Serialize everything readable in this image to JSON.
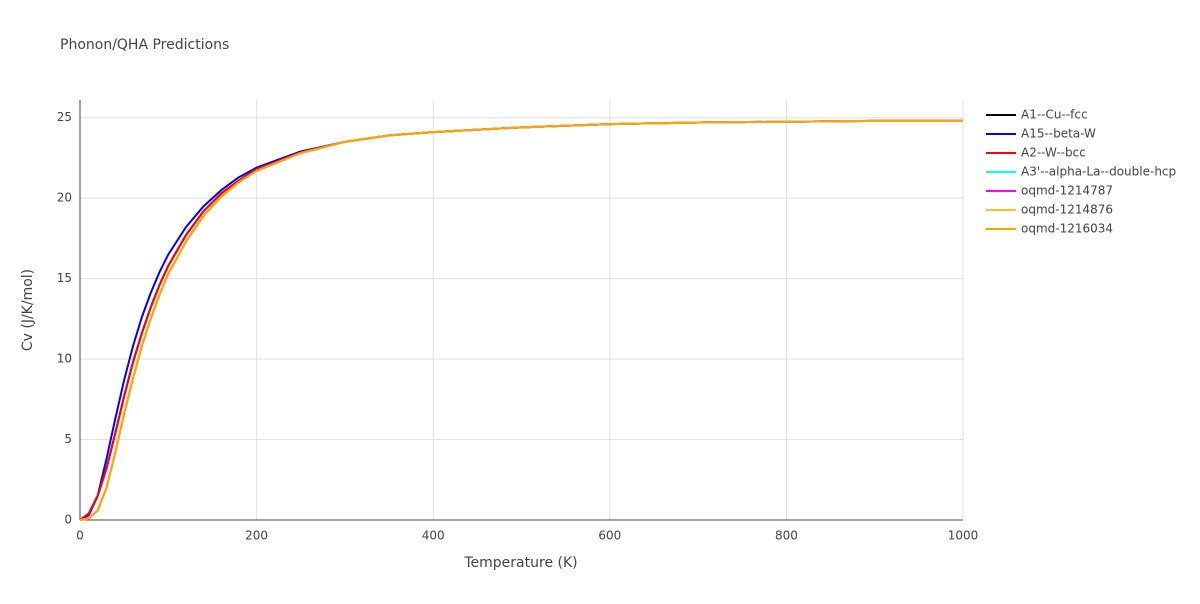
{
  "chart_data": {
    "type": "line",
    "title": "Phonon/QHA Predictions",
    "x_label": "Temperature (K)",
    "y_label": "Cv (J/K/mol)",
    "x": [
      0,
      10,
      20,
      30,
      40,
      50,
      60,
      70,
      80,
      90,
      100,
      120,
      140,
      160,
      180,
      200,
      250,
      300,
      350,
      400,
      500,
      600,
      700,
      800,
      900,
      1000
    ],
    "series": [
      {
        "name": "A1--Cu--fcc",
        "color": "#000000",
        "values": [
          0,
          0.4,
          1.5,
          3.2,
          5.4,
          7.7,
          9.8,
          11.6,
          13.2,
          14.6,
          15.8,
          17.7,
          19.2,
          20.3,
          21.1,
          21.8,
          22.85,
          23.5,
          23.9,
          24.1,
          24.4,
          24.6,
          24.7,
          24.75,
          24.8,
          24.8
        ]
      },
      {
        "name": "A15--beta-W",
        "color": "#0000ff",
        "values": [
          0,
          0.3,
          1.5,
          3.8,
          6.3,
          8.7,
          10.8,
          12.6,
          14.1,
          15.4,
          16.5,
          18.2,
          19.5,
          20.5,
          21.3,
          21.9,
          22.9,
          23.5,
          23.9,
          24.1,
          24.4,
          24.6,
          24.7,
          24.75,
          24.8,
          24.8
        ]
      },
      {
        "name": "A2--W--bcc",
        "color": "#ff0000",
        "values": [
          0,
          0.4,
          1.5,
          3.2,
          5.4,
          7.7,
          9.8,
          11.6,
          13.2,
          14.6,
          15.8,
          17.7,
          19.2,
          20.3,
          21.1,
          21.8,
          22.85,
          23.5,
          23.9,
          24.1,
          24.4,
          24.6,
          24.7,
          24.75,
          24.8,
          24.8
        ]
      },
      {
        "name": "A3'--alpha-La--double-hcp",
        "color": "#00ffff",
        "values": [
          0,
          0.1,
          0.6,
          2.0,
          4.2,
          6.6,
          8.8,
          10.8,
          12.5,
          14.0,
          15.3,
          17.3,
          18.9,
          20.1,
          21.0,
          21.7,
          22.8,
          23.5,
          23.9,
          24.1,
          24.4,
          24.6,
          24.7,
          24.75,
          24.8,
          24.8
        ]
      },
      {
        "name": "oqmd-1214787",
        "color": "#ff00ff",
        "values": [
          0,
          0.1,
          0.6,
          2.0,
          4.2,
          6.6,
          8.8,
          10.8,
          12.5,
          14.0,
          15.3,
          17.3,
          18.9,
          20.1,
          21.0,
          21.7,
          22.8,
          23.5,
          23.9,
          24.1,
          24.4,
          24.6,
          24.7,
          24.75,
          24.8,
          24.8
        ]
      },
      {
        "name": "oqmd-1214876",
        "color": "#ffc125",
        "values": [
          0,
          0.1,
          0.6,
          2.0,
          4.2,
          6.6,
          8.8,
          10.8,
          12.5,
          14.0,
          15.3,
          17.3,
          18.9,
          20.1,
          21.0,
          21.7,
          22.8,
          23.5,
          23.9,
          24.1,
          24.4,
          24.6,
          24.7,
          24.75,
          24.8,
          24.8
        ]
      },
      {
        "name": "oqmd-1216034",
        "color": "#ffa500",
        "values": [
          0,
          0.1,
          0.6,
          2.0,
          4.2,
          6.6,
          8.8,
          10.8,
          12.5,
          14.0,
          15.3,
          17.3,
          18.9,
          20.1,
          21.0,
          21.7,
          22.8,
          23.5,
          23.9,
          24.1,
          24.4,
          24.6,
          24.7,
          24.75,
          24.8,
          24.8
        ]
      }
    ],
    "xlim": [
      0,
      1000
    ],
    "xticks": [
      0,
      200,
      400,
      600,
      800,
      1000
    ],
    "ylim": [
      0,
      26.1
    ],
    "yticks": [
      0,
      5,
      10,
      15,
      20,
      25
    ],
    "grid": true
  }
}
